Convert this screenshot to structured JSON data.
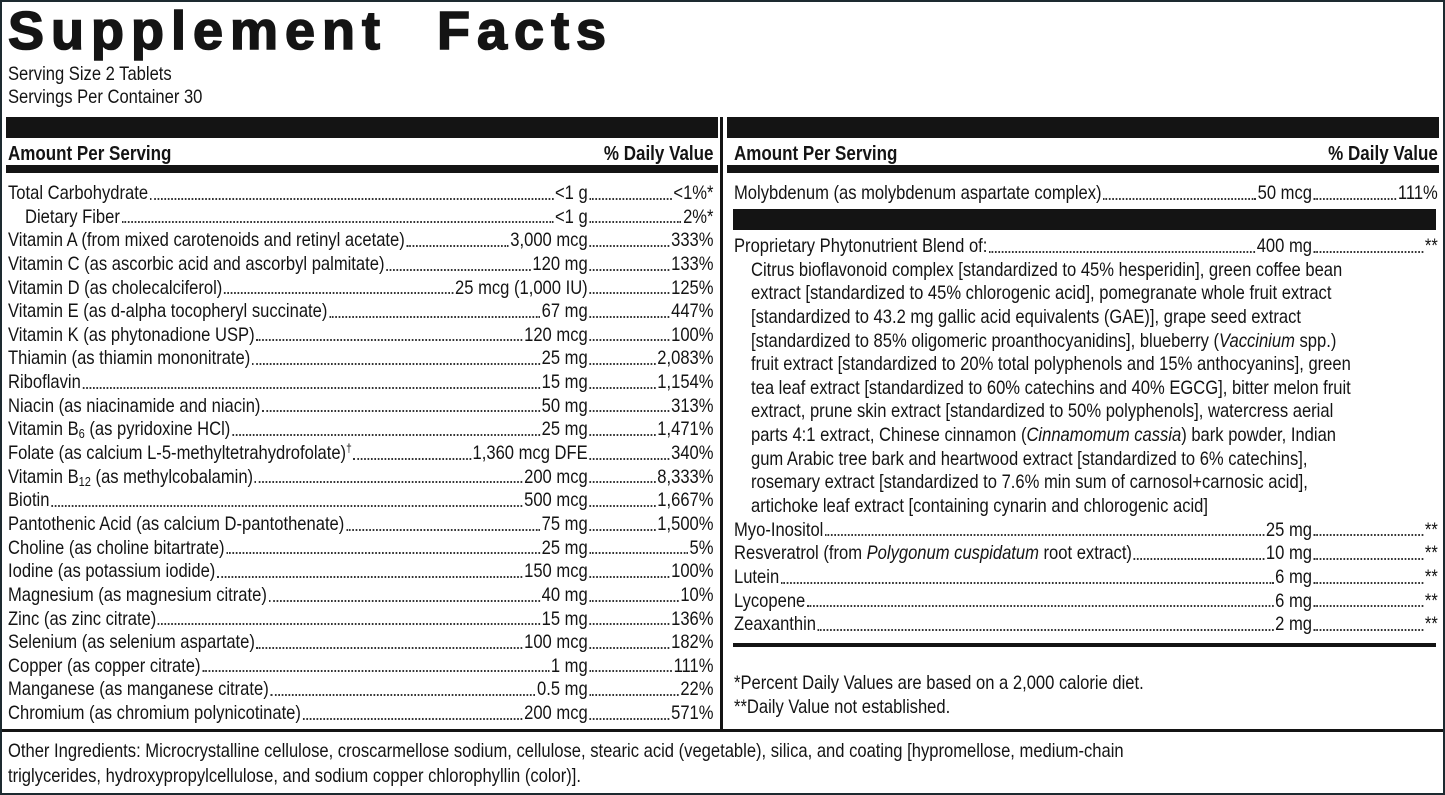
{
  "title": "Supplement Facts",
  "serving_size": "Serving Size 2 Tablets",
  "servings_per_container": "Servings Per Container 30",
  "left_column": {
    "header": {
      "amount": "Amount Per Serving",
      "daily_value": "% Daily Value"
    },
    "rows": [
      {
        "name": "Total Carbohydrate",
        "amount": "<1 g",
        "daily_value": "<1%*"
      },
      {
        "name": "Dietary Fiber",
        "amount": "<1 g",
        "daily_value": "2%*",
        "indent": true
      },
      {
        "name": "Vitamin A (from mixed carotenoids and retinyl acetate)",
        "amount": "3,000 mcg",
        "daily_value": "333%"
      },
      {
        "name": "Vitamin C (as ascorbic acid and ascorbyl palmitate)",
        "amount": "120 mg",
        "daily_value": "133%"
      },
      {
        "name": "Vitamin D (as cholecalciferol)",
        "amount": "25 mcg (1,000 IU)",
        "daily_value": "125%"
      },
      {
        "name": "Vitamin E (as d-alpha tocopheryl succinate)",
        "amount": "67 mg",
        "daily_value": "447%"
      },
      {
        "name": "Vitamin K (as phytonadione USP)",
        "amount": "120 mcg",
        "daily_value": "100%"
      },
      {
        "name": "Thiamin (as thiamin mononitrate)",
        "amount": "25 mg",
        "daily_value": "2,083%"
      },
      {
        "name": "Riboflavin",
        "amount": "15 mg",
        "daily_value": "1,154%"
      },
      {
        "name": "Niacin (as niacinamide and niacin)",
        "amount": "50 mg",
        "daily_value": "313%"
      },
      {
        "name": [
          "Vitamin B",
          {
            "text": "6",
            "style": "sub"
          },
          " (as pyridoxine HCl)"
        ],
        "amount": "25 mg",
        "daily_value": "1,471%"
      },
      {
        "name": [
          "Folate (as calcium L-5-methyltetrahydrofolate)",
          {
            "text": "†",
            "style": "sup"
          }
        ],
        "amount": "1,360 mcg DFE",
        "daily_value": "340%"
      },
      {
        "name": [
          "Vitamin B",
          {
            "text": "12",
            "style": "sub"
          },
          " (as methylcobalamin)"
        ],
        "amount": "200 mcg",
        "daily_value": "8,333%"
      },
      {
        "name": "Biotin",
        "amount": "500 mcg",
        "daily_value": "1,667%"
      },
      {
        "name": "Pantothenic Acid (as calcium D-pantothenate)",
        "amount": "75 mg",
        "daily_value": "1,500%"
      },
      {
        "name": "Choline (as choline bitartrate)",
        "amount": "25 mg",
        "daily_value": "5%"
      },
      {
        "name": "Iodine (as potassium iodide)",
        "amount": "150 mcg",
        "daily_value": "100%"
      },
      {
        "name": "Magnesium (as magnesium citrate)",
        "amount": "40 mg",
        "daily_value": "10%"
      },
      {
        "name": "Zinc (as zinc citrate)",
        "amount": "15 mg",
        "daily_value": "136%"
      },
      {
        "name": "Selenium (as selenium aspartate)",
        "amount": "100 mcg",
        "daily_value": "182%"
      },
      {
        "name": "Copper (as copper citrate)",
        "amount": "1 mg",
        "daily_value": "111%"
      },
      {
        "name": "Manganese (as manganese citrate)",
        "amount": "0.5 mg",
        "daily_value": "22%"
      },
      {
        "name": "Chromium (as chromium polynicotinate)",
        "amount": "200 mcg",
        "daily_value": "571%"
      }
    ]
  },
  "right_column": {
    "header": {
      "amount": "Amount Per Serving",
      "daily_value": "% Daily Value"
    },
    "rows": [
      {
        "name": "Molybdenum (as molybdenum aspartate complex)",
        "amount": "50 mcg",
        "daily_value": "111%"
      }
    ],
    "blend": {
      "name": "Proprietary Phytonutrient Blend of:",
      "amount": "400 mg",
      "daily_value": "**",
      "description": [
        [
          "Citrus bioflavonoid complex [standardized to 45% hesperidin], green coffee bean"
        ],
        [
          "extract [standardized to 45% chlorogenic acid], pomegranate whole fruit extract"
        ],
        [
          "[standardized to 43.2 mg gallic acid equivalents (GAE)], grape seed extract"
        ],
        [
          "[standardized to 85% oligomeric proanthocyanidins], blueberry (",
          {
            "text": "Vaccinium",
            "style": "italic"
          },
          " spp.)"
        ],
        [
          "fruit extract [standardized to 20% total polyphenols and 15% anthocyanins], green"
        ],
        [
          "tea leaf extract [standardized to 60% catechins and 40% EGCG], bitter melon fruit"
        ],
        [
          "extract, prune skin extract [standardized to 50% polyphenols], watercress aerial"
        ],
        [
          "parts 4:1 extract, Chinese cinnamon (",
          {
            "text": "Cinnamomum cassia",
            "style": "italic"
          },
          ") bark powder, Indian"
        ],
        [
          "gum Arabic tree bark and heartwood extract [standardized to 6% catechins],"
        ],
        [
          "rosemary extract [standardized to 7.6% min sum of carnosol+carnosic acid],"
        ],
        [
          "artichoke leaf extract [containing cynarin and chlorogenic acid]"
        ]
      ]
    },
    "blend_rows": [
      {
        "name": "Myo-Inositol",
        "amount": "25 mg",
        "daily_value": "**"
      },
      {
        "name": [
          "Resveratrol (from ",
          {
            "text": "Polygonum cuspidatum",
            "style": "italic"
          },
          " root extract)"
        ],
        "amount": "10 mg",
        "daily_value": "**"
      },
      {
        "name": "Lutein",
        "amount": "6 mg",
        "daily_value": "**"
      },
      {
        "name": "Lycopene",
        "amount": "6 mg",
        "daily_value": "**"
      },
      {
        "name": "Zeaxanthin",
        "amount": "2 mg",
        "daily_value": "**"
      }
    ],
    "footnotes": [
      "*Percent Daily Values are based on a 2,000 calorie diet.",
      "**Daily Value not established."
    ]
  },
  "other_ingredients": [
    "Other Ingredients: Microcrystalline cellulose, croscarmellose sodium, cellulose, stearic acid (vegetable), silica, and coating [hypromellose, medium-chain",
    "triglycerides, hydroxypropylcellulose, and sodium copper chlorophyllin (color)]."
  ]
}
